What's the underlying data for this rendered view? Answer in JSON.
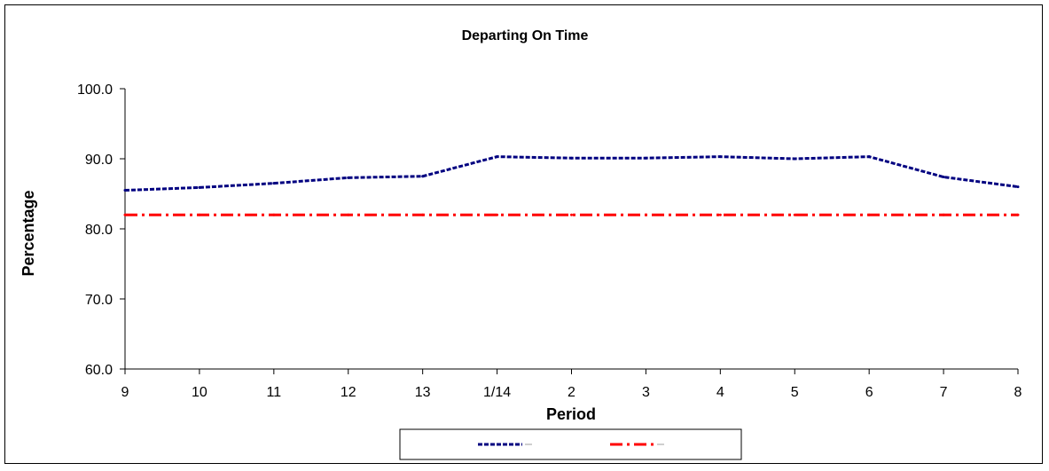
{
  "chart_data": {
    "type": "line",
    "title": "Departing On Time",
    "xlabel": "Period",
    "ylabel": "Percentage",
    "categories": [
      "9",
      "10",
      "11",
      "12",
      "13",
      "1/14",
      "2",
      "3",
      "4",
      "5",
      "6",
      "7",
      "8"
    ],
    "ylim": [
      60,
      100
    ],
    "yticks": [
      "60.0",
      "70.0",
      "80.0",
      "90.0",
      "100.0"
    ],
    "grid": false,
    "legend_position": "bottom",
    "series": [
      {
        "values": [
          85.5,
          85.9,
          86.5,
          87.3,
          87.5,
          90.3,
          90.1,
          90.1,
          90.3,
          90.0,
          90.3,
          87.4,
          86.0
        ],
        "color": "#000080",
        "style": "dashed"
      },
      {
        "values": [
          82.0,
          82.0,
          82.0,
          82.0,
          82.0,
          82.0,
          82.0,
          82.0,
          82.0,
          82.0,
          82.0,
          82.0,
          82.0
        ],
        "color": "#ff0000",
        "style": "dash-dot"
      }
    ]
  }
}
